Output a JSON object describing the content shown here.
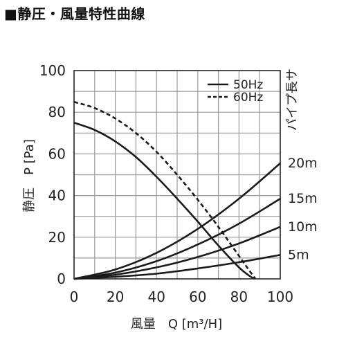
{
  "title": "■静圧・風量特性曲線",
  "chart_data": {
    "type": "line",
    "xlabel": "風量　Q [m³/H]",
    "ylabel": "静圧　P [Pa]",
    "right_axis_label": "パイプ長サ",
    "xlim": [
      0,
      100
    ],
    "ylim": [
      0,
      100
    ],
    "xticks": [
      "0",
      "20",
      "40",
      "60",
      "80",
      "100"
    ],
    "yticks": [
      "0",
      "20",
      "40",
      "60",
      "80",
      "100"
    ],
    "grid": true,
    "legend": [
      {
        "label": "50Hz",
        "style": "solid"
      },
      {
        "label": "60Hz",
        "style": "dashed"
      }
    ],
    "series": [
      {
        "name": "50Hz",
        "style": "solid",
        "x": [
          0,
          10,
          20,
          30,
          40,
          50,
          60,
          70,
          80,
          85,
          87.5
        ],
        "y": [
          75,
          71.5,
          66,
          58.5,
          49,
          38.5,
          27.5,
          16,
          5.5,
          1.5,
          0
        ]
      },
      {
        "name": "60Hz",
        "style": "dashed",
        "x": [
          0,
          10,
          20,
          30,
          40,
          50,
          60,
          70,
          80,
          85,
          88
        ],
        "y": [
          85,
          82,
          77,
          70,
          61,
          50,
          38,
          25,
          11,
          4,
          0
        ]
      }
    ],
    "pipe_curves": [
      {
        "label": "20m",
        "x": [
          0,
          20,
          40,
          60,
          80,
          100
        ],
        "y": [
          0,
          4.5,
          12.5,
          24,
          38.5,
          55.5
        ]
      },
      {
        "label": "15m",
        "x": [
          0,
          20,
          40,
          60,
          80,
          100
        ],
        "y": [
          0,
          3,
          8.5,
          16.5,
          26.5,
          38.5
        ]
      },
      {
        "label": "10m",
        "x": [
          0,
          20,
          40,
          60,
          80,
          100
        ],
        "y": [
          0,
          2,
          5.5,
          10.5,
          17,
          25
        ]
      },
      {
        "label": "5m",
        "x": [
          0,
          20,
          40,
          60,
          80,
          100
        ],
        "y": [
          0,
          1,
          2.5,
          5,
          8,
          11.5
        ]
      }
    ]
  }
}
